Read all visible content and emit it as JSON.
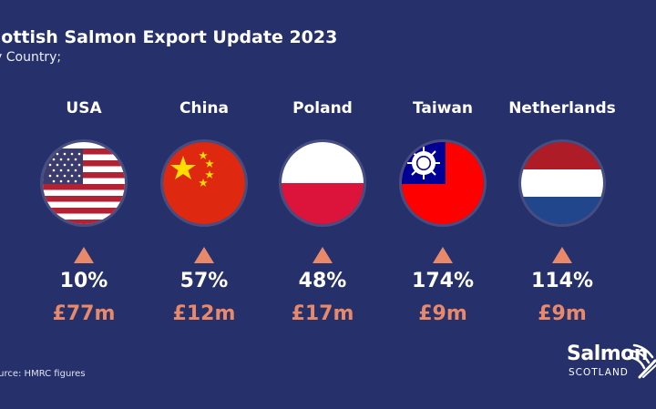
{
  "header": {
    "title": "cottish Salmon Export Update 2023",
    "subtitle": "y Country;"
  },
  "countries": [
    {
      "name": "USA",
      "flag": "usa-flag",
      "change": "10%",
      "value": "£77m"
    },
    {
      "name": "China",
      "flag": "china-flag",
      "change": "57%",
      "value": "£12m"
    },
    {
      "name": "Poland",
      "flag": "poland-flag",
      "change": "48%",
      "value": "£17m"
    },
    {
      "name": "Taiwan",
      "flag": "taiwan-flag",
      "change": "174%",
      "value": "£9m"
    },
    {
      "name": "Netherlands",
      "flag": "netherlands-flag",
      "change": "114%",
      "value": "£9m"
    }
  ],
  "footer": {
    "source": "ource: HMRC figures"
  },
  "logo": {
    "word": "Salmon",
    "sub": "SCOTLAND"
  },
  "colors": {
    "background": "#26306b",
    "accent": "#e8896a",
    "text": "#ffffff"
  },
  "icons": {
    "trend": "up-triangle-icon",
    "logo_mark": "saltire-wave-icon"
  }
}
